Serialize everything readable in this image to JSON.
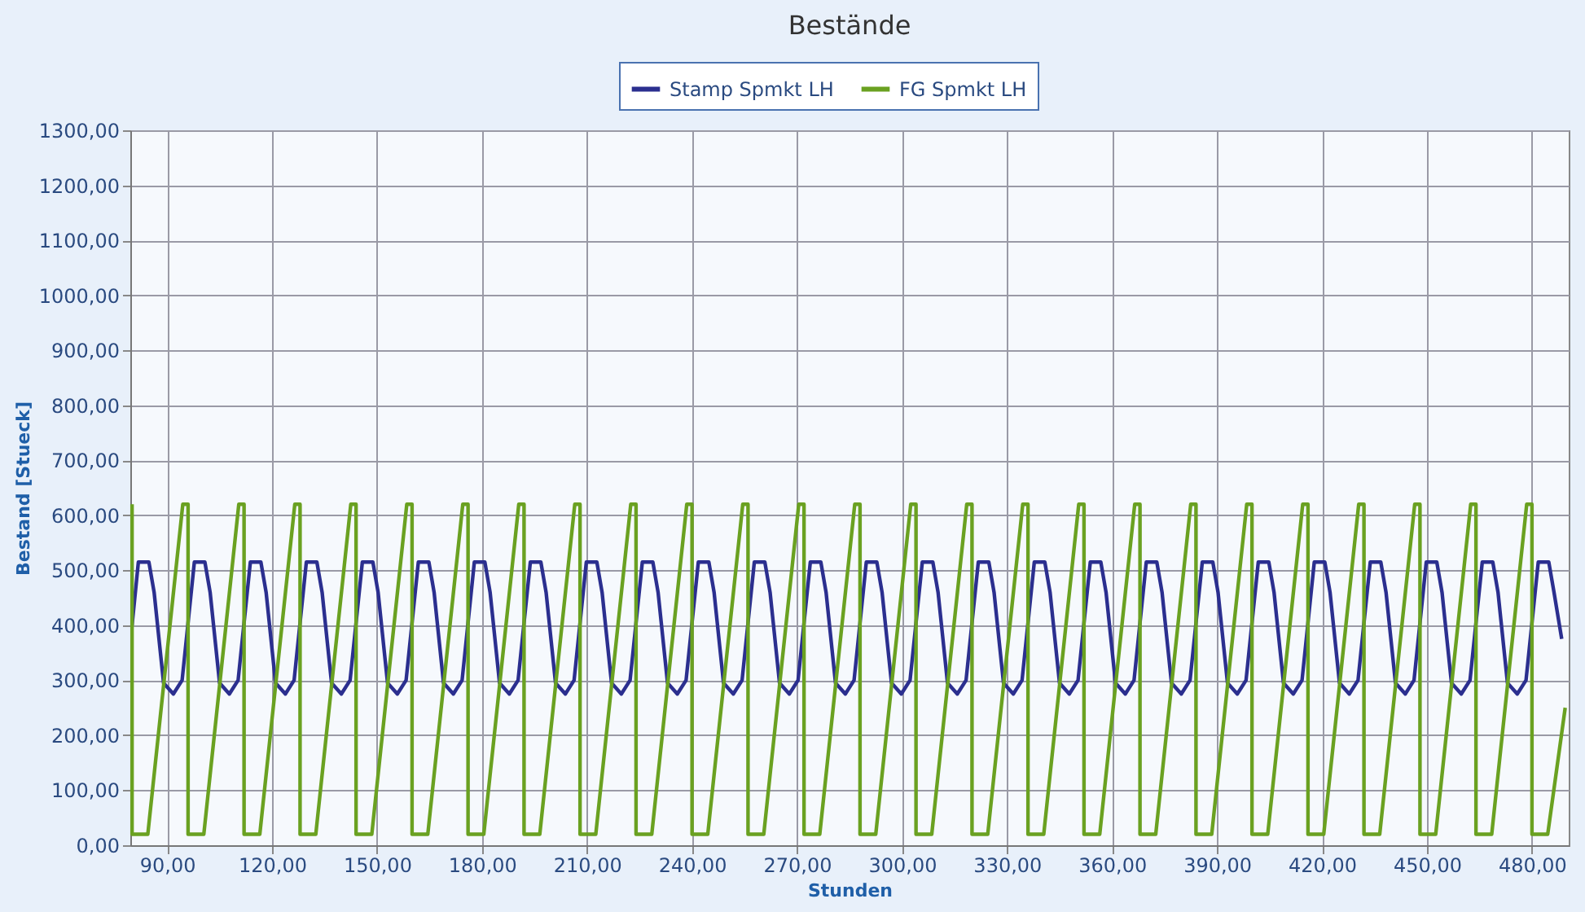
{
  "chart_data": {
    "type": "line",
    "title": "Bestände",
    "xlabel": "Stunden",
    "ylabel": "Bestand [Stueck]",
    "xlim": [
      79.5,
      490.5
    ],
    "xticks": [
      {
        "value": 90,
        "label": "90,00"
      },
      {
        "value": 120,
        "label": "120,00"
      },
      {
        "value": 150,
        "label": "150,00"
      },
      {
        "value": 180,
        "label": "180,00"
      },
      {
        "value": 210,
        "label": "210,00"
      },
      {
        "value": 240,
        "label": "240,00"
      },
      {
        "value": 270,
        "label": "270,00"
      },
      {
        "value": 300,
        "label": "300,00"
      },
      {
        "value": 330,
        "label": "330,00"
      },
      {
        "value": 360,
        "label": "360,00"
      },
      {
        "value": 390,
        "label": "390,00"
      },
      {
        "value": 420,
        "label": "420,00"
      },
      {
        "value": 450,
        "label": "450,00"
      },
      {
        "value": 480,
        "label": "480,00"
      }
    ],
    "ylim": [
      0,
      1300
    ],
    "yticks": [
      {
        "value": 0,
        "label": "0,00"
      },
      {
        "value": 100,
        "label": "100,00"
      },
      {
        "value": 200,
        "label": "200,00"
      },
      {
        "value": 300,
        "label": "300,00"
      },
      {
        "value": 400,
        "label": "400,00"
      },
      {
        "value": 500,
        "label": "500,00"
      },
      {
        "value": 600,
        "label": "600,00"
      },
      {
        "value": 700,
        "label": "700,00"
      },
      {
        "value": 800,
        "label": "800,00"
      },
      {
        "value": 900,
        "label": "900,00"
      },
      {
        "value": 1000,
        "label": "1000,00"
      },
      {
        "value": 1100,
        "label": "1100,00"
      },
      {
        "value": 1200,
        "label": "1200,00"
      },
      {
        "value": 1300,
        "label": "1300,00"
      }
    ],
    "grid": true,
    "legend": "top",
    "marker": "none",
    "line_style": "solid",
    "series": [
      {
        "name": "Stamp Spmkt LH",
        "color": "#2b2f8f",
        "x": [
          80,
          81.8,
          84.8,
          86.3,
          89,
          91.8,
          94.3,
          97.8,
          100.8,
          102.3,
          105,
          107.8,
          110.3,
          113.8,
          116.8,
          118.3,
          121,
          123.8,
          126.3,
          129.8,
          132.8,
          134.3,
          137,
          139.8,
          142.3,
          145.8,
          148.8,
          150.3,
          153,
          155.8,
          158.3,
          161.8,
          164.8,
          166.3,
          169,
          171.8,
          174.3,
          177.8,
          180.8,
          182.3,
          185,
          187.8,
          190.3,
          193.8,
          196.8,
          198.3,
          201,
          203.8,
          206.3,
          209.8,
          212.8,
          214.3,
          217,
          219.8,
          222.3,
          225.8,
          228.8,
          230.3,
          233,
          235.8,
          238.3,
          241.8,
          244.8,
          246.3,
          249,
          251.8,
          254.3,
          257.8,
          260.8,
          262.3,
          265,
          267.8,
          270.3,
          273.8,
          276.8,
          278.3,
          281,
          283.8,
          286.3,
          289.8,
          292.8,
          294.3,
          297,
          299.8,
          302.3,
          305.8,
          308.8,
          310.3,
          313,
          315.8,
          318.3,
          321.8,
          324.8,
          326.3,
          329,
          331.8,
          334.3,
          337.8,
          340.8,
          342.3,
          345,
          347.8,
          350.3,
          353.8,
          356.8,
          358.3,
          361,
          363.8,
          366.3,
          369.8,
          372.8,
          374.3,
          377,
          379.8,
          382.3,
          385.8,
          388.8,
          390.3,
          393,
          395.8,
          398.3,
          401.8,
          404.8,
          406.3,
          409,
          411.8,
          414.3,
          417.8,
          420.8,
          422.3,
          425,
          427.8,
          430.3,
          433.8,
          436.8,
          438.3,
          441,
          443.8,
          446.3,
          449.8,
          452.8,
          454.3,
          457,
          459.8,
          462.3,
          465.8,
          468.8,
          470.3,
          473,
          475.8,
          478.3,
          481.8,
          484.8,
          486.3,
          488.5
        ],
        "values": [
          400,
          515,
          515,
          460,
          295,
          275,
          300,
          515,
          515,
          460,
          295,
          275,
          300,
          515,
          515,
          460,
          295,
          275,
          300,
          515,
          515,
          460,
          295,
          275,
          300,
          515,
          515,
          460,
          295,
          275,
          300,
          515,
          515,
          460,
          295,
          275,
          300,
          515,
          515,
          460,
          295,
          275,
          300,
          515,
          515,
          460,
          295,
          275,
          300,
          515,
          515,
          460,
          295,
          275,
          300,
          515,
          515,
          460,
          295,
          275,
          300,
          515,
          515,
          460,
          295,
          275,
          300,
          515,
          515,
          460,
          295,
          275,
          300,
          515,
          515,
          460,
          295,
          275,
          300,
          515,
          515,
          460,
          295,
          275,
          300,
          515,
          515,
          460,
          295,
          275,
          300,
          515,
          515,
          460,
          295,
          275,
          300,
          515,
          515,
          460,
          295,
          275,
          300,
          515,
          515,
          460,
          295,
          275,
          300,
          515,
          515,
          460,
          295,
          275,
          300,
          515,
          515,
          460,
          295,
          275,
          300,
          515,
          515,
          460,
          295,
          275,
          300,
          515,
          515,
          460,
          295,
          275,
          300,
          515,
          515,
          460,
          295,
          275,
          300,
          515,
          515,
          460,
          295,
          275,
          300,
          515,
          515,
          460,
          295,
          275,
          300,
          515,
          515,
          460,
          375
        ]
      },
      {
        "name": "FG Spmkt LH",
        "color": "#6aa121",
        "x": [
          80,
          80,
          84.5,
          94.5,
          96,
          96,
          100.5,
          110.5,
          112,
          112,
          116.5,
          126.5,
          128,
          128,
          132.5,
          142.5,
          144,
          144,
          148.5,
          158.5,
          160,
          160,
          164.5,
          174.5,
          176,
          176,
          180.5,
          190.5,
          192,
          192,
          196.5,
          206.5,
          208,
          208,
          212.5,
          222.5,
          224,
          224,
          228.5,
          238.5,
          240,
          240,
          244.5,
          254.5,
          256,
          256,
          260.5,
          270.5,
          272,
          272,
          276.5,
          286.5,
          288,
          288,
          292.5,
          302.5,
          304,
          304,
          308.5,
          318.5,
          320,
          320,
          324.5,
          334.5,
          336,
          336,
          340.5,
          350.5,
          352,
          352,
          356.5,
          366.5,
          368,
          368,
          372.5,
          382.5,
          384,
          384,
          388.5,
          398.5,
          400,
          400,
          404.5,
          414.5,
          416,
          416,
          420.5,
          430.5,
          432,
          432,
          436.5,
          446.5,
          448,
          448,
          452.5,
          462.5,
          464,
          464,
          468.5,
          478.5,
          480,
          480,
          484.5,
          489.5
        ],
        "values": [
          620,
          20,
          20,
          620,
          620,
          20,
          20,
          620,
          620,
          20,
          20,
          620,
          620,
          20,
          20,
          620,
          620,
          20,
          20,
          620,
          620,
          20,
          20,
          620,
          620,
          20,
          20,
          620,
          620,
          20,
          20,
          620,
          620,
          20,
          20,
          620,
          620,
          20,
          20,
          620,
          620,
          20,
          20,
          620,
          620,
          20,
          20,
          620,
          620,
          20,
          20,
          620,
          620,
          20,
          20,
          620,
          620,
          20,
          20,
          620,
          620,
          20,
          20,
          620,
          620,
          20,
          20,
          620,
          620,
          20,
          20,
          620,
          620,
          20,
          20,
          620,
          620,
          20,
          20,
          620,
          620,
          20,
          20,
          620,
          620,
          20,
          20,
          620,
          620,
          20,
          20,
          620,
          620,
          20,
          20,
          620,
          620,
          20,
          20,
          620,
          620,
          20,
          20,
          250
        ]
      }
    ]
  }
}
